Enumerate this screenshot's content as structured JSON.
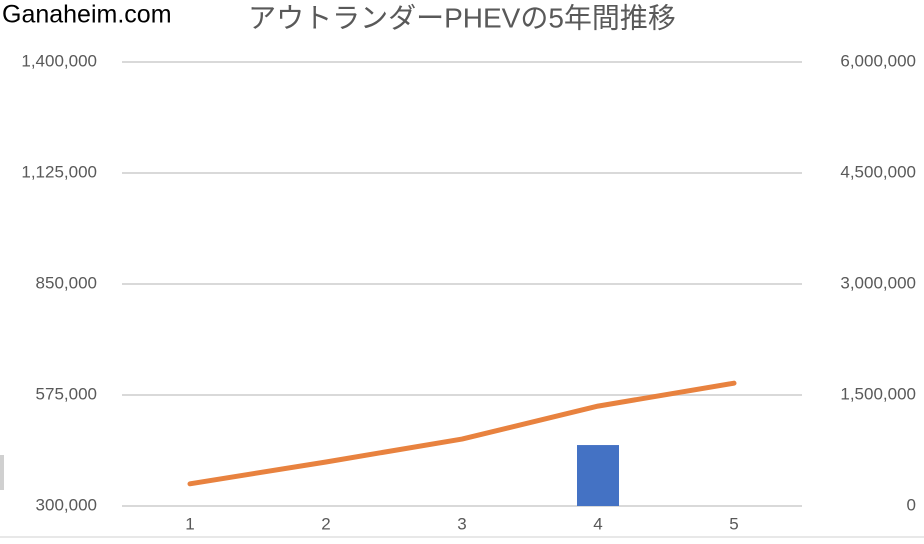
{
  "watermark": "Ganaheim.com",
  "chart_data": {
    "type": "bar-line",
    "title": "アウトランダーPHEVの5年間推移",
    "categories": [
      "1",
      "2",
      "3",
      "4",
      "5"
    ],
    "series": [
      {
        "type": "bar",
        "color": "#4472c4",
        "values": [
          null,
          null,
          null,
          451000,
          null
        ]
      },
      {
        "type": "line",
        "color": "#e8823f",
        "axis": "y2",
        "values": [
          300000,
          595000,
          905000,
          1350000,
          1660000
        ]
      }
    ],
    "ylim": [
      300000,
      1400000
    ],
    "yticks": [
      {
        "value": 300000,
        "label": "300,000"
      },
      {
        "value": 575000,
        "label": "575,000"
      },
      {
        "value": 850000,
        "label": "850,000"
      },
      {
        "value": 1125000,
        "label": "1,125,000"
      },
      {
        "value": 1400000,
        "label": "1,400,000"
      }
    ],
    "y2lim": [
      0,
      6000000
    ],
    "y2ticks": [
      0,
      {
        "value": 1500000,
        "label": "1,500,000"
      },
      {
        "value": 3000000,
        "label": "3,000,000"
      },
      {
        "value": 4500000,
        "label": "4,500,000"
      },
      {
        "value": 6000000,
        "label": "6,000,000"
      }
    ],
    "grid": true
  }
}
